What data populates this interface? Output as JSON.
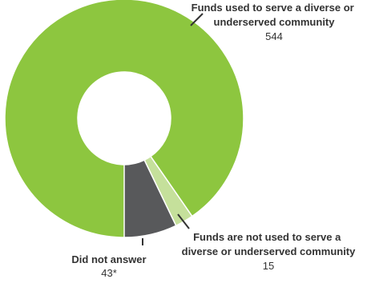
{
  "chart_data": {
    "type": "pie",
    "variant": "donut",
    "title": "",
    "slices": [
      {
        "label_lines": [
          "Funds used to serve a diverse or",
          "underserved community"
        ],
        "value": 544,
        "value_label": "544",
        "color": "#8dc63f"
      },
      {
        "label_lines": [
          "Funds are not used to serve a",
          "diverse or underserved community"
        ],
        "value": 15,
        "value_label": "15",
        "color": "#c5e09b"
      },
      {
        "label_lines": [
          "Did not answer"
        ],
        "value": 43,
        "value_label": "43*",
        "color": "#58595b"
      }
    ],
    "legend": "none"
  }
}
